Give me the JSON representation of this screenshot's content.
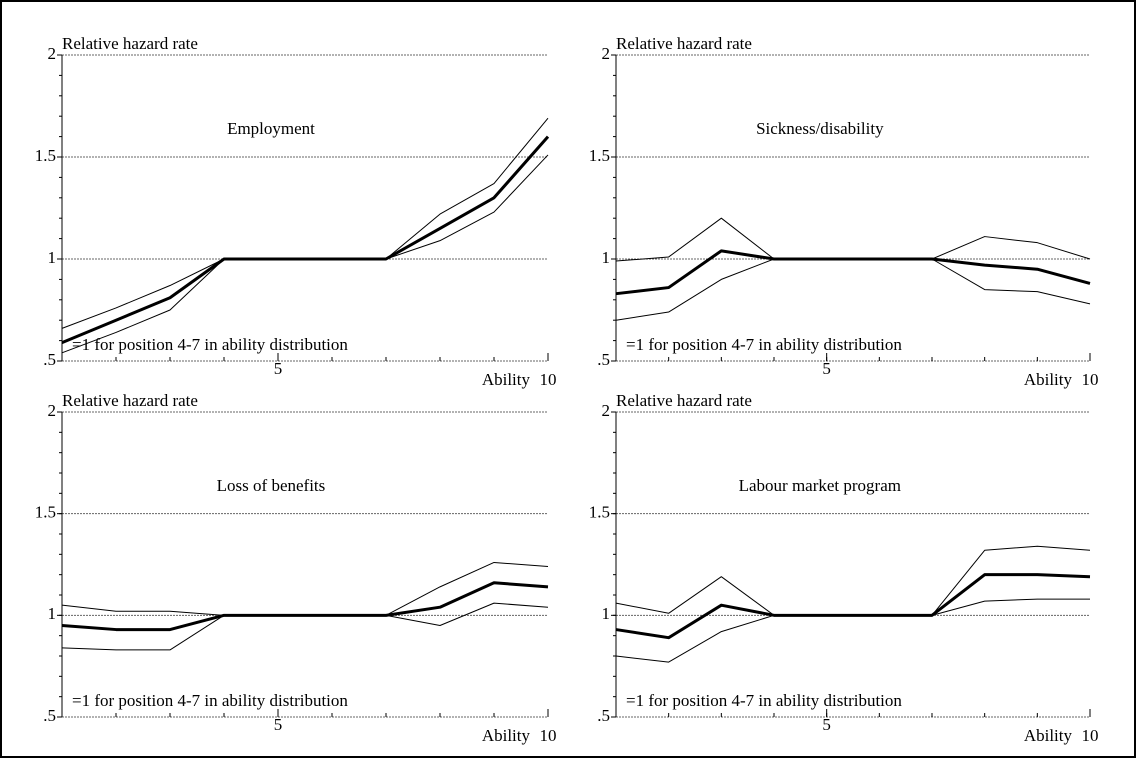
{
  "chart_data": [
    {
      "type": "line",
      "title": "Employment",
      "ylabel": "Relative hazard rate",
      "xlabel": "Ability",
      "annotation": "=1 for position 4-7 in ability distribution",
      "x": [
        1,
        2,
        3,
        4,
        5,
        6,
        7,
        8,
        9,
        10
      ],
      "xlim": [
        1,
        10
      ],
      "xticks": [
        5,
        10
      ],
      "ylim": [
        0.5,
        2
      ],
      "yticks": [
        {
          "value": 0.5,
          "label": ".5"
        },
        1,
        1.5,
        2
      ],
      "grid": true,
      "series": [
        {
          "color": "#000000",
          "line_width": 1,
          "values": [
            0.66,
            0.76,
            0.87,
            1,
            1,
            1,
            1,
            1.22,
            1.37,
            1.69
          ]
        },
        {
          "color": "#000000",
          "line_width": 3,
          "values": [
            0.59,
            0.7,
            0.81,
            1,
            1,
            1,
            1,
            1.15,
            1.3,
            1.6
          ]
        },
        {
          "color": "#000000",
          "line_width": 1,
          "values": [
            0.54,
            0.64,
            0.75,
            1,
            1,
            1,
            1,
            1.09,
            1.23,
            1.51
          ]
        }
      ]
    },
    {
      "type": "line",
      "title": "Sickness/disability",
      "ylabel": "Relative hazard rate",
      "xlabel": "Ability",
      "annotation": "=1 for position 4-7 in ability distribution",
      "x": [
        1,
        2,
        3,
        4,
        5,
        6,
        7,
        8,
        9,
        10
      ],
      "xlim": [
        1,
        10
      ],
      "xticks": [
        5,
        10
      ],
      "ylim": [
        0.5,
        2
      ],
      "yticks": [
        {
          "value": 0.5,
          "label": ".5"
        },
        1,
        1.5,
        2
      ],
      "grid": true,
      "series": [
        {
          "color": "#000000",
          "line_width": 1,
          "values": [
            0.99,
            1.01,
            1.2,
            1,
            1,
            1,
            1,
            1.11,
            1.08,
            1.0
          ]
        },
        {
          "color": "#000000",
          "line_width": 3,
          "values": [
            0.83,
            0.86,
            1.04,
            1,
            1,
            1,
            1,
            0.97,
            0.95,
            0.88
          ]
        },
        {
          "color": "#000000",
          "line_width": 1,
          "values": [
            0.7,
            0.74,
            0.9,
            1,
            1,
            1,
            1,
            0.85,
            0.84,
            0.78
          ]
        }
      ]
    },
    {
      "type": "line",
      "title": "Loss of benefits",
      "ylabel": "Relative hazard rate",
      "xlabel": "Ability",
      "annotation": "=1 for position 4-7 in ability distribution",
      "x": [
        1,
        2,
        3,
        4,
        5,
        6,
        7,
        8,
        9,
        10
      ],
      "xlim": [
        1,
        10
      ],
      "xticks": [
        5,
        10
      ],
      "ylim": [
        0.5,
        2
      ],
      "yticks": [
        {
          "value": 0.5,
          "label": ".5"
        },
        1,
        1.5,
        2
      ],
      "grid": true,
      "series": [
        {
          "color": "#000000",
          "line_width": 1,
          "values": [
            1.05,
            1.02,
            1.02,
            1,
            1,
            1,
            1,
            1.14,
            1.26,
            1.24
          ]
        },
        {
          "color": "#000000",
          "line_width": 3,
          "values": [
            0.95,
            0.93,
            0.93,
            1,
            1,
            1,
            1,
            1.04,
            1.16,
            1.14
          ]
        },
        {
          "color": "#000000",
          "line_width": 1,
          "values": [
            0.84,
            0.83,
            0.83,
            1,
            1,
            1,
            1,
            0.95,
            1.06,
            1.04
          ]
        }
      ]
    },
    {
      "type": "line",
      "title": "Labour market program",
      "ylabel": "Relative hazard rate",
      "xlabel": "Ability",
      "annotation": "=1 for position 4-7 in ability distribution",
      "x": [
        1,
        2,
        3,
        4,
        5,
        6,
        7,
        8,
        9,
        10
      ],
      "xlim": [
        1,
        10
      ],
      "xticks": [
        5,
        10
      ],
      "ylim": [
        0.5,
        2
      ],
      "yticks": [
        {
          "value": 0.5,
          "label": ".5"
        },
        1,
        1.5,
        2
      ],
      "grid": true,
      "series": [
        {
          "color": "#000000",
          "line_width": 1,
          "values": [
            1.06,
            1.01,
            1.19,
            1,
            1,
            1,
            1,
            1.32,
            1.34,
            1.32
          ]
        },
        {
          "color": "#000000",
          "line_width": 3,
          "values": [
            0.93,
            0.89,
            1.05,
            1,
            1,
            1,
            1,
            1.2,
            1.2,
            1.19
          ]
        },
        {
          "color": "#000000",
          "line_width": 1,
          "values": [
            0.8,
            0.77,
            0.92,
            1,
            1,
            1,
            1,
            1.07,
            1.08,
            1.08
          ]
        }
      ]
    }
  ]
}
